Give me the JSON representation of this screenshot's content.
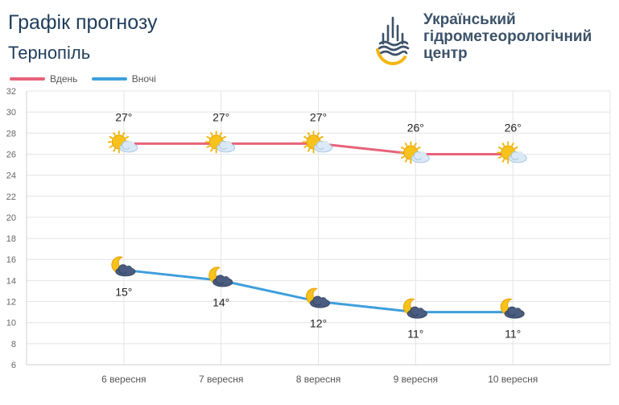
{
  "header": {
    "title": "Графік прогнозу",
    "city": "Тернопіль"
  },
  "brand": {
    "line1": "Український",
    "line2": "гідрометеорологічний",
    "line3": "центр",
    "logo_icon": "ukrhydromet-drop-logo-icon"
  },
  "colors": {
    "day": "#e8627a",
    "night": "#3f9fdc",
    "grid": "#e4e4e4",
    "title": "#1f3d5c"
  },
  "chart_data": {
    "type": "line",
    "categories": [
      "6 вересня",
      "7 вересня",
      "8 вересня",
      "9 вересня",
      "10 вересня"
    ],
    "series": [
      {
        "name": "Вдень",
        "values": [
          27,
          27,
          27,
          26,
          26
        ],
        "labels": [
          "27°",
          "27°",
          "27°",
          "26°",
          "26°"
        ],
        "icons": [
          "sun-cloud-icon",
          "sun-cloud-icon",
          "sun-cloud-icon",
          "sun-cloud-icon",
          "sun-cloud-icon"
        ]
      },
      {
        "name": "Вночі",
        "values": [
          15,
          14,
          12,
          11,
          11
        ],
        "labels": [
          "15°",
          "14°",
          "12°",
          "11°",
          "11°"
        ],
        "icons": [
          "moon-cloud-icon",
          "moon-cloud-icon",
          "moon-cloud-icon",
          "moon-cloud-icon",
          "moon-cloud-icon"
        ]
      }
    ],
    "ylim": [
      6,
      32
    ],
    "yticks": [
      6,
      8,
      10,
      12,
      14,
      16,
      18,
      20,
      22,
      24,
      26,
      28,
      30,
      32
    ],
    "grid": true,
    "legend": "top-left"
  }
}
